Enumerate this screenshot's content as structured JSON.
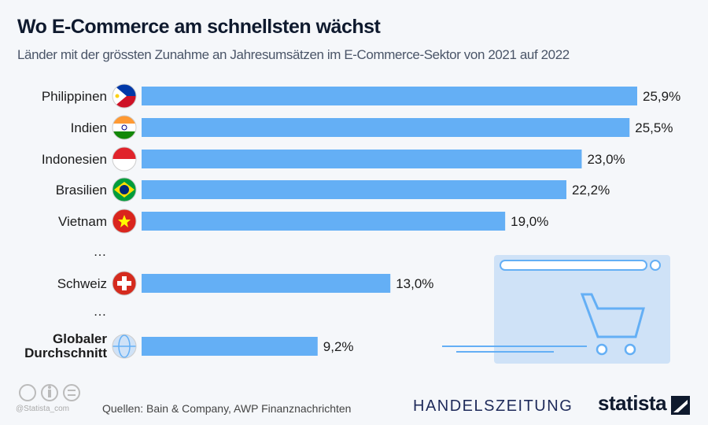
{
  "title": "Wo E-Commerce am schnellsten wächst",
  "subtitle": "Länder mit der grössten Zunahme an Jahresumsätzen im E-Commerce-Sektor von 2021 auf 2022",
  "chart_data": {
    "type": "bar",
    "orientation": "horizontal",
    "categories": [
      "Philippinen",
      "Indien",
      "Indonesien",
      "Brasilien",
      "Vietnam",
      "…",
      "Schweiz",
      "…",
      "Globaler Durchschnitt"
    ],
    "values": [
      25.9,
      25.5,
      23.0,
      22.2,
      19.0,
      null,
      13.0,
      null,
      9.2
    ],
    "data_labels": [
      "25,9%",
      "25,5%",
      "23,0%",
      "22,2%",
      "19,0%",
      "",
      "13,0%",
      "",
      "9,2%"
    ],
    "flags": [
      "philippines",
      "india",
      "indonesia",
      "brazil",
      "vietnam",
      "",
      "switzerland",
      "",
      "globe"
    ],
    "bar_color": "#64aff5",
    "xlim": [
      0,
      25.9
    ],
    "grid": false
  },
  "footer": {
    "handle": "@Statista_com",
    "source": "Quellen: Bain & Company, AWP Finanznachrichten",
    "brand1": "HANDELSZEITUNG",
    "brand2": "statista"
  }
}
